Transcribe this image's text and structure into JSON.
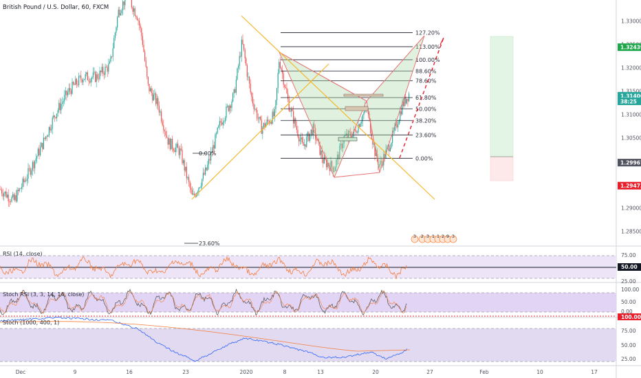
{
  "chart_data": {
    "type": "candlestick",
    "title": "British Pound / U.S. Dollar, 60, FXCM",
    "y_ticks": [
      1.33,
      1.325,
      1.32,
      1.315,
      1.31,
      1.305,
      1.3,
      1.295,
      1.29,
      1.285
    ],
    "y_tick_labels": [
      "1.33000",
      "1.32500",
      "1.32000",
      "1.31500",
      "1.31000",
      "1.30500",
      "1.30000",
      "1.29500",
      "1.29000",
      "1.28500"
    ],
    "ylim": [
      1.2818,
      1.3345
    ],
    "x_ticks": [
      "Dec",
      "9",
      "16",
      "23",
      "2020",
      "8",
      "13",
      "20",
      "27",
      "Feb",
      "10",
      "17"
    ],
    "price_tags": [
      {
        "value": 1.32439,
        "label": "1.32439",
        "color": "#1ea74a"
      },
      {
        "value": 1.314,
        "label": "1.31400",
        "color": "#26a69a"
      },
      {
        "value": 1.3128,
        "label": "38:25",
        "color": "#26a69a"
      },
      {
        "value": 1.29967,
        "label": "1.29967",
        "color": "#50535e"
      },
      {
        "value": 1.29473,
        "label": "1.29473",
        "color": "#e91e2b"
      }
    ],
    "fib_levels": [
      {
        "ratio": "127.20%",
        "value": 1.3275
      },
      {
        "ratio": "113.00%",
        "value": 1.3245
      },
      {
        "ratio": "100.00%",
        "value": 1.3217
      },
      {
        "ratio": "88.60%",
        "value": 1.3193
      },
      {
        "ratio": "78.60%",
        "value": 1.3172
      },
      {
        "ratio": "61.80%",
        "value": 1.3136
      },
      {
        "ratio": "50.00%",
        "value": 1.3112
      },
      {
        "ratio": "38.20%",
        "value": 1.3087
      },
      {
        "ratio": "23.60%",
        "value": 1.3056
      },
      {
        "ratio": "0.00%",
        "value": 1.3006
      }
    ],
    "extra_labels": {
      "left_zero": "0.00%",
      "left_236": "23.60%"
    },
    "pattern_badges": [
      "3",
      "2",
      "3",
      "1",
      "1",
      "2",
      "9",
      "3"
    ],
    "rsi": {
      "label": "RSI (14, close)",
      "ticks": [
        "75.00",
        "50.00",
        "25.00"
      ],
      "level": "50.00"
    },
    "stoch_rsi": {
      "label": "Stoch RSI (3, 3, 14, 14, close)",
      "ticks": [
        "100.00",
        "50.00",
        "0.00"
      ],
      "level": "100.00"
    },
    "stoch": {
      "label": "Stoch (1000, 400, 1)",
      "ticks": [
        "75.00",
        "50.00",
        "25.00"
      ]
    }
  }
}
